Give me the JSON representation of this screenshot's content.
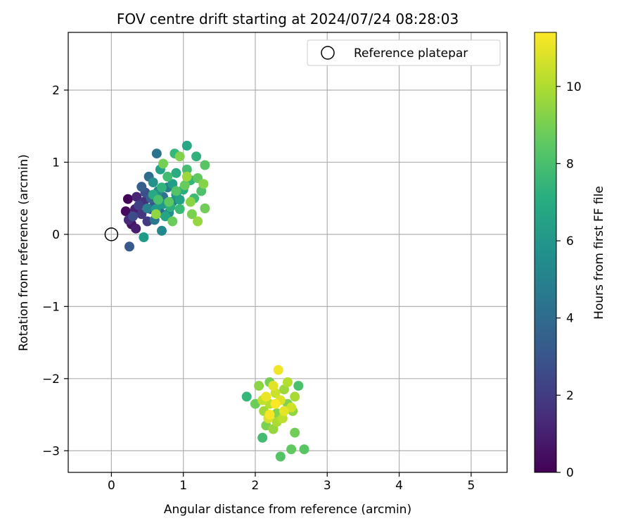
{
  "chart_data": {
    "type": "scatter",
    "title": "FOV centre drift starting at 2024/07/24 08:28:03",
    "xlabel": "Angular distance from reference (arcmin)",
    "ylabel": "Rotation from reference (arcmin)",
    "xlim": [
      -0.6,
      5.5
    ],
    "ylim": [
      -3.3,
      2.8
    ],
    "xticks": [
      0,
      1,
      2,
      3,
      4,
      5
    ],
    "yticks": [
      -3,
      -2,
      -1,
      0,
      1,
      2
    ],
    "grid": true,
    "colormap": "viridis",
    "colorbar": {
      "label": "Hours from first FF file",
      "range": [
        0,
        11.4
      ],
      "ticks": [
        0,
        2,
        4,
        6,
        8,
        10
      ]
    },
    "legend": {
      "position": "top-right",
      "entries": [
        {
          "label": "Reference platepar",
          "marker": "open-circle"
        }
      ]
    },
    "reference_point": {
      "x": 0,
      "y": 0
    },
    "series": [
      {
        "name": "FOV centre drift",
        "points": [
          [
            0.23,
            0.49,
            0.1
          ],
          [
            0.2,
            0.32,
            0.3
          ],
          [
            0.28,
            0.14,
            0.6
          ],
          [
            0.34,
            0.08,
            0.9
          ],
          [
            0.33,
            0.35,
            1.0
          ],
          [
            0.35,
            0.52,
            1.2
          ],
          [
            0.24,
            0.2,
            1.4
          ],
          [
            0.45,
            0.45,
            1.6
          ],
          [
            0.42,
            0.28,
            1.8
          ],
          [
            0.5,
            0.18,
            2.0
          ],
          [
            0.38,
            0.4,
            2.2
          ],
          [
            0.55,
            0.35,
            2.4
          ],
          [
            0.3,
            0.25,
            2.6
          ],
          [
            0.47,
            0.58,
            2.8
          ],
          [
            0.6,
            0.42,
            3.0
          ],
          [
            0.25,
            -0.17,
            3.2
          ],
          [
            0.42,
            0.66,
            3.4
          ],
          [
            0.55,
            0.5,
            3.6
          ],
          [
            0.68,
            0.3,
            3.8
          ],
          [
            0.52,
            0.8,
            4.0
          ],
          [
            0.72,
            0.52,
            4.2
          ],
          [
            0.63,
            1.12,
            4.4
          ],
          [
            0.6,
            0.2,
            4.6
          ],
          [
            0.78,
            0.65,
            4.8
          ],
          [
            0.5,
            0.36,
            5.0
          ],
          [
            0.85,
            0.45,
            5.2
          ],
          [
            0.7,
            0.05,
            5.4
          ],
          [
            0.65,
            0.6,
            5.5
          ],
          [
            0.8,
            0.3,
            5.6
          ],
          [
            0.58,
            0.72,
            5.8
          ],
          [
            0.9,
            0.55,
            6.0
          ],
          [
            0.72,
            0.42,
            6.1
          ],
          [
            0.45,
            -0.04,
            6.2
          ],
          [
            0.62,
            0.35,
            6.3
          ],
          [
            0.85,
            0.7,
            6.4
          ],
          [
            0.68,
            0.9,
            6.5
          ],
          [
            0.95,
            0.48,
            6.6
          ],
          [
            0.75,
            0.25,
            6.7
          ],
          [
            1.05,
            1.23,
            6.8
          ],
          [
            0.58,
            0.55,
            6.9
          ],
          [
            0.9,
            0.85,
            7.0
          ],
          [
            1.0,
            0.62,
            7.1
          ],
          [
            0.82,
            0.38,
            7.2
          ],
          [
            1.18,
            1.08,
            7.3
          ],
          [
            0.7,
            0.65,
            7.4
          ],
          [
            1.1,
            0.75,
            7.5
          ],
          [
            0.88,
            1.12,
            7.6
          ],
          [
            0.95,
            0.35,
            7.7
          ],
          [
            1.15,
            0.5,
            7.8
          ],
          [
            0.78,
            0.8,
            7.9
          ],
          [
            1.05,
            0.9,
            8.0
          ],
          [
            0.65,
            0.48,
            8.1
          ],
          [
            1.25,
            0.6,
            8.2
          ],
          [
            0.9,
            0.6,
            8.3
          ],
          [
            1.3,
            0.96,
            8.4
          ],
          [
            0.8,
            0.45,
            8.5
          ],
          [
            1.2,
            0.78,
            8.6
          ],
          [
            1.02,
            0.68,
            8.7
          ],
          [
            0.85,
            0.18,
            8.8
          ],
          [
            1.3,
            0.36,
            8.9
          ],
          [
            0.72,
            0.98,
            9.0
          ],
          [
            1.12,
            0.28,
            9.1
          ],
          [
            0.95,
            1.08,
            9.2
          ],
          [
            1.28,
            0.7,
            9.3
          ],
          [
            1.1,
            0.45,
            9.4
          ],
          [
            0.62,
            0.28,
            9.5
          ],
          [
            1.2,
            0.18,
            9.6
          ],
          [
            1.05,
            0.8,
            9.7
          ],
          [
            1.88,
            -2.25,
            7.6
          ],
          [
            2.1,
            -2.82,
            7.9
          ],
          [
            2.6,
            -2.1,
            8.1
          ],
          [
            2.35,
            -3.08,
            8.3
          ],
          [
            2.68,
            -2.98,
            8.4
          ],
          [
            2.5,
            -2.98,
            8.6
          ],
          [
            2.0,
            -2.35,
            8.8
          ],
          [
            2.55,
            -2.75,
            8.9
          ],
          [
            2.2,
            -2.05,
            9.0
          ],
          [
            2.15,
            -2.65,
            9.1
          ],
          [
            2.45,
            -2.35,
            9.2
          ],
          [
            2.3,
            -2.48,
            9.3
          ],
          [
            2.05,
            -2.1,
            9.4
          ],
          [
            2.52,
            -2.45,
            9.5
          ],
          [
            2.25,
            -2.7,
            9.6
          ],
          [
            2.4,
            -2.15,
            9.7
          ],
          [
            2.12,
            -2.45,
            9.8
          ],
          [
            2.55,
            -2.25,
            9.9
          ],
          [
            2.3,
            -2.6,
            10.0
          ],
          [
            2.45,
            -2.05,
            10.1
          ],
          [
            2.2,
            -2.35,
            10.2
          ],
          [
            2.38,
            -2.55,
            10.3
          ],
          [
            2.1,
            -2.3,
            10.4
          ],
          [
            2.28,
            -2.2,
            10.5
          ],
          [
            2.5,
            -2.4,
            10.6
          ],
          [
            2.18,
            -2.55,
            10.7
          ],
          [
            2.35,
            -2.3,
            10.8
          ],
          [
            2.25,
            -2.1,
            10.9
          ],
          [
            2.4,
            -2.45,
            11.0
          ],
          [
            2.15,
            -2.25,
            11.1
          ],
          [
            2.32,
            -1.88,
            11.2
          ],
          [
            2.2,
            -2.5,
            11.3
          ],
          [
            2.28,
            -2.35,
            11.35
          ]
        ]
      }
    ]
  }
}
